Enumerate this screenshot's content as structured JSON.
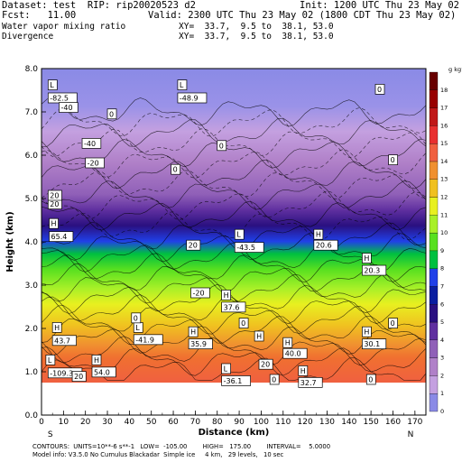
{
  "header": {
    "dataset": "Dataset: test  RIP: rip20020523 d2",
    "init": "Init: 1200 UTC Thu 23 May 02",
    "fcst": "Fcst:   11.00",
    "valid": "Valid: 2300 UTC Thu 23 May 02 (1800 CDT Thu 23 May 02)",
    "field1": "Water vapor mixing ratio",
    "xy1": "XY=  33.7,  9.5 to  38.1, 53.0",
    "field2": "Divergence",
    "xy2": "XY=  33.7,  9.5 to  38.1, 53.0"
  },
  "footer": {
    "contours": "CONTOURS:  UNITS=10**-6 s**-1   LOW=  -105.00        HIGH=   175.00        INTERVAL=    5.0000",
    "model": "Model info: V3.5.0 No Cumulus Blackadar  Simple ice     4 km,   29 levels,   10 sec"
  },
  "chart_data": {
    "type": "heatmap",
    "title": "",
    "xlabel": "Distance (km)",
    "ylabel": "Height (km)",
    "xlim": [
      0,
      175
    ],
    "ylim": [
      0,
      8
    ],
    "x_ticks": [
      "0",
      "10",
      "20",
      "30",
      "40",
      "50",
      "60",
      "70",
      "80",
      "90",
      "100",
      "110",
      "120",
      "130",
      "140",
      "150",
      "160",
      "170"
    ],
    "y_ticks": [
      "0.0",
      "1.0",
      "2.0",
      "3.0",
      "4.0",
      "5.0",
      "6.0",
      "7.0",
      "8.0"
    ],
    "endpoint_left": "S",
    "endpoint_right": "N",
    "colorbar": {
      "units": "g kg⁻¹",
      "levels": [
        "0",
        "1",
        "2",
        "3",
        "4",
        "5",
        "6",
        "7",
        "8",
        "9",
        "10",
        "11",
        "12",
        "13",
        "14",
        "15",
        "16",
        "17",
        "18"
      ],
      "colors": [
        "#8a8ae6",
        "#c4a0e0",
        "#b080c8",
        "#9060b8",
        "#6030a0",
        "#2a1080",
        "#0a1ea0",
        "#2040e8",
        "#00c040",
        "#58e020",
        "#a8f028",
        "#e8f020",
        "#f0c020",
        "#f09030",
        "#f06040",
        "#e83030",
        "#c01818",
        "#980000",
        "#680000"
      ]
    },
    "label_boxes": [
      {
        "text": "L",
        "x": 3,
        "y": 7.55
      },
      {
        "text": "-82.5",
        "x": 3,
        "y": 7.25
      },
      {
        "text": "-40",
        "x": 8,
        "y": 7.03
      },
      {
        "text": "-40",
        "x": 18.5,
        "y": 6.2
      },
      {
        "text": "-20",
        "x": 20,
        "y": 5.75
      },
      {
        "text": "L",
        "x": 62,
        "y": 7.55
      },
      {
        "text": "-48.9",
        "x": 62,
        "y": 7.25
      },
      {
        "text": "0",
        "x": 30,
        "y": 6.88
      },
      {
        "text": "0",
        "x": 80,
        "y": 6.15
      },
      {
        "text": "0",
        "x": 59,
        "y": 5.6
      },
      {
        "text": "0",
        "x": 152,
        "y": 7.45
      },
      {
        "text": "0",
        "x": 158,
        "y": 5.82
      },
      {
        "text": "20",
        "x": 3,
        "y": 4.8
      },
      {
        "text": "H",
        "x": 3.5,
        "y": 4.35
      },
      {
        "text": "65.4",
        "x": 3.5,
        "y": 4.05
      },
      {
        "text": "20",
        "x": 66,
        "y": 3.85
      },
      {
        "text": "L",
        "x": 88,
        "y": 4.1
      },
      {
        "text": "-43.5",
        "x": 88,
        "y": 3.8
      },
      {
        "text": "H",
        "x": 124,
        "y": 4.1
      },
      {
        "text": "20.6",
        "x": 124,
        "y": 3.85
      },
      {
        "text": "H",
        "x": 146,
        "y": 3.55
      },
      {
        "text": "20.3",
        "x": 146,
        "y": 3.27
      },
      {
        "text": "-20",
        "x": 68,
        "y": 2.75
      },
      {
        "text": "H",
        "x": 82,
        "y": 2.7
      },
      {
        "text": "37.6",
        "x": 82,
        "y": 2.42
      },
      {
        "text": "0",
        "x": 90,
        "y": 2.05
      },
      {
        "text": "0",
        "x": 158,
        "y": 2.05
      },
      {
        "text": "H",
        "x": 5,
        "y": 1.95
      },
      {
        "text": "43.7",
        "x": 5,
        "y": 1.65
      },
      {
        "text": "L",
        "x": 42,
        "y": 1.95
      },
      {
        "text": "-41.9",
        "x": 42,
        "y": 1.67
      },
      {
        "text": "H",
        "x": 67,
        "y": 1.85
      },
      {
        "text": "35.9",
        "x": 67,
        "y": 1.57
      },
      {
        "text": "H",
        "x": 97,
        "y": 1.75
      },
      {
        "text": "H",
        "x": 110,
        "y": 1.6
      },
      {
        "text": "40.0",
        "x": 110,
        "y": 1.35
      },
      {
        "text": "H",
        "x": 146,
        "y": 1.85
      },
      {
        "text": "30.1",
        "x": 146,
        "y": 1.57
      },
      {
        "text": "L",
        "x": 2,
        "y": 1.2
      },
      {
        "text": "-109.3",
        "x": 3,
        "y": 0.9
      },
      {
        "text": "H",
        "x": 23,
        "y": 1.2
      },
      {
        "text": "54.0",
        "x": 23,
        "y": 0.92
      },
      {
        "text": "20",
        "x": 14,
        "y": 0.82
      },
      {
        "text": "L",
        "x": 82,
        "y": 1.0
      },
      {
        "text": "-36.1",
        "x": 82,
        "y": 0.72
      },
      {
        "text": "20",
        "x": 99,
        "y": 1.1
      },
      {
        "text": "0",
        "x": 104,
        "y": 0.75
      },
      {
        "text": "H",
        "x": 117,
        "y": 0.95
      },
      {
        "text": "32.7",
        "x": 117,
        "y": 0.68
      },
      {
        "text": "0",
        "x": 148,
        "y": 0.75
      },
      {
        "text": "20",
        "x": 3,
        "y": 5.0
      },
      {
        "text": "0",
        "x": 41,
        "y": 2.17
      }
    ]
  }
}
